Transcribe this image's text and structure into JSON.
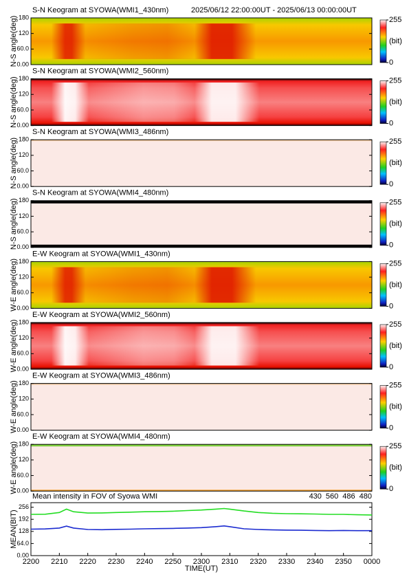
{
  "chart_data": [
    {
      "type": "keogram",
      "title": "S-N Keogram at SYOWA(WMI1_430nm)",
      "subtitle": "2025/06/12 22:00:00UT - 2025/06/13 00:00:00UT",
      "ylabel": "N-S angle(deg)",
      "ylim": [
        0,
        180
      ],
      "yticks": [
        {
          "value": 0,
          "label": "0.00"
        },
        {
          "value": 60,
          "label": "60.0"
        },
        120,
        180
      ],
      "colorbar": {
        "label": "(bit)",
        "ticks": [
          255,
          0
        ]
      }
    },
    {
      "type": "keogram",
      "title": "S-N Keogram at SYOWA(WMI2_560nm)",
      "ylabel": "N-S angle(deg)",
      "ylim": [
        0,
        180
      ],
      "yticks": [
        {
          "value": 0,
          "label": "0.00"
        },
        {
          "value": 60,
          "label": "60.0"
        },
        120,
        180
      ],
      "colorbar": {
        "label": "(bit)",
        "ticks": [
          255,
          0
        ]
      }
    },
    {
      "type": "keogram",
      "title": "S-N Keogram at SYOWA(WMI3_486nm)",
      "ylabel": "N-S angle(deg)",
      "ylim": [
        0,
        180
      ],
      "yticks": [
        {
          "value": 0,
          "label": "0.00"
        },
        {
          "value": 60,
          "label": "60.0"
        },
        120,
        180
      ],
      "colorbar": {
        "label": "(bit)",
        "ticks": [
          255,
          0
        ]
      }
    },
    {
      "type": "keogram",
      "title": "S-N Keogram at SYOWA(WMI4_480nm)",
      "ylabel": "N-S angle(deg)",
      "ylim": [
        0,
        180
      ],
      "yticks": [
        {
          "value": 0,
          "label": "0.00"
        },
        {
          "value": 60,
          "label": "60.0"
        },
        120,
        180
      ],
      "colorbar": {
        "label": "(bit)",
        "ticks": [
          255,
          0
        ]
      }
    },
    {
      "type": "keogram",
      "title": "E-W Keogram at SYOWA(WMI1_430nm)",
      "ylabel": "W-E angle(deg)",
      "ylim": [
        0,
        180
      ],
      "yticks": [
        {
          "value": 0,
          "label": "0.00"
        },
        {
          "value": 60,
          "label": "60.0"
        },
        120,
        180
      ],
      "colorbar": {
        "label": "(bit)",
        "ticks": [
          255,
          0
        ]
      }
    },
    {
      "type": "keogram",
      "title": "E-W Keogram at SYOWA(WMI2_560nm)",
      "ylabel": "W-E angle(deg)",
      "ylim": [
        0,
        180
      ],
      "yticks": [
        {
          "value": 0,
          "label": "0.00"
        },
        {
          "value": 60,
          "label": "60.0"
        },
        120,
        180
      ],
      "colorbar": {
        "label": "(bit)",
        "ticks": [
          255,
          0
        ]
      }
    },
    {
      "type": "keogram",
      "title": "E-W Keogram at SYOWA(WMI3_486nm)",
      "ylabel": "W-E angle(deg)",
      "ylim": [
        0,
        180
      ],
      "yticks": [
        {
          "value": 0,
          "label": "0.00"
        },
        {
          "value": 60,
          "label": "60.0"
        },
        120,
        180
      ],
      "colorbar": {
        "label": "(bit)",
        "ticks": [
          255,
          0
        ]
      }
    },
    {
      "type": "keogram",
      "title": "E-W Keogram at SYOWA(WMI4_480nm)",
      "ylabel": "W-E angle(deg)",
      "ylim": [
        0,
        180
      ],
      "yticks": [
        {
          "value": 0,
          "label": "0.00"
        },
        {
          "value": 60,
          "label": "60.0"
        },
        120,
        180
      ],
      "colorbar": {
        "label": "(bit)",
        "ticks": [
          255,
          0
        ]
      }
    },
    {
      "type": "line",
      "title": "Mean intensity in FOV of Syowa WMI",
      "ylabel": "MEAN(BIT)",
      "xlabel": "TIME(UT)",
      "xlim": [
        0,
        120
      ],
      "ylim": [
        0,
        280
      ],
      "xticks": [
        {
          "value": 0,
          "label": "2200"
        },
        {
          "value": 10,
          "label": "2210"
        },
        {
          "value": 20,
          "label": "2220"
        },
        {
          "value": 30,
          "label": "2230"
        },
        {
          "value": 40,
          "label": "2240"
        },
        {
          "value": 50,
          "label": "2250"
        },
        {
          "value": 60,
          "label": "2300"
        },
        {
          "value": 70,
          "label": "2310"
        },
        {
          "value": 80,
          "label": "2320"
        },
        {
          "value": 90,
          "label": "2330"
        },
        {
          "value": 100,
          "label": "2340"
        },
        {
          "value": 110,
          "label": "2350"
        },
        {
          "value": 120,
          "label": "0000"
        }
      ],
      "yticks": [
        {
          "value": 0,
          "label": "0.00"
        },
        {
          "value": 64,
          "label": "64.0"
        },
        128,
        192,
        256
      ],
      "x": [
        0,
        5,
        10,
        12.5,
        15,
        20,
        25,
        30,
        35,
        40,
        45,
        50,
        55,
        60,
        65,
        68,
        70,
        75,
        80,
        85,
        90,
        95,
        100,
        105,
        110,
        115,
        120
      ],
      "series": [
        {
          "name": "430",
          "color": "#1a2ad0",
          "values": [
            140,
            141,
            146,
            156,
            146,
            138,
            137,
            139,
            140,
            142,
            143,
            144,
            146,
            148,
            153,
            157,
            153,
            142,
            138,
            136,
            135,
            134,
            133,
            132,
            133,
            132,
            132
          ]
        },
        {
          "name": "560",
          "color": "#22dd22",
          "values": [
            218,
            219,
            228,
            246,
            232,
            225,
            226,
            228,
            230,
            232,
            233,
            235,
            238,
            241,
            246,
            249,
            246,
            236,
            228,
            224,
            222,
            221,
            220,
            218,
            218,
            216,
            215
          ]
        },
        {
          "name": "486",
          "color": "#cc1111",
          "values": [
            null,
            null,
            null,
            null,
            null,
            null,
            null,
            null,
            null,
            null,
            null,
            null,
            null,
            null,
            null,
            null,
            null,
            null,
            null,
            null,
            null,
            null,
            null,
            null,
            null,
            null,
            null
          ]
        },
        {
          "name": "480",
          "color": "#000000",
          "values": [
            null,
            null,
            null,
            null,
            null,
            null,
            null,
            null,
            null,
            null,
            null,
            null,
            null,
            null,
            null,
            null,
            null,
            null,
            null,
            null,
            null,
            null,
            null,
            null,
            null,
            null,
            null
          ]
        }
      ]
    }
  ]
}
